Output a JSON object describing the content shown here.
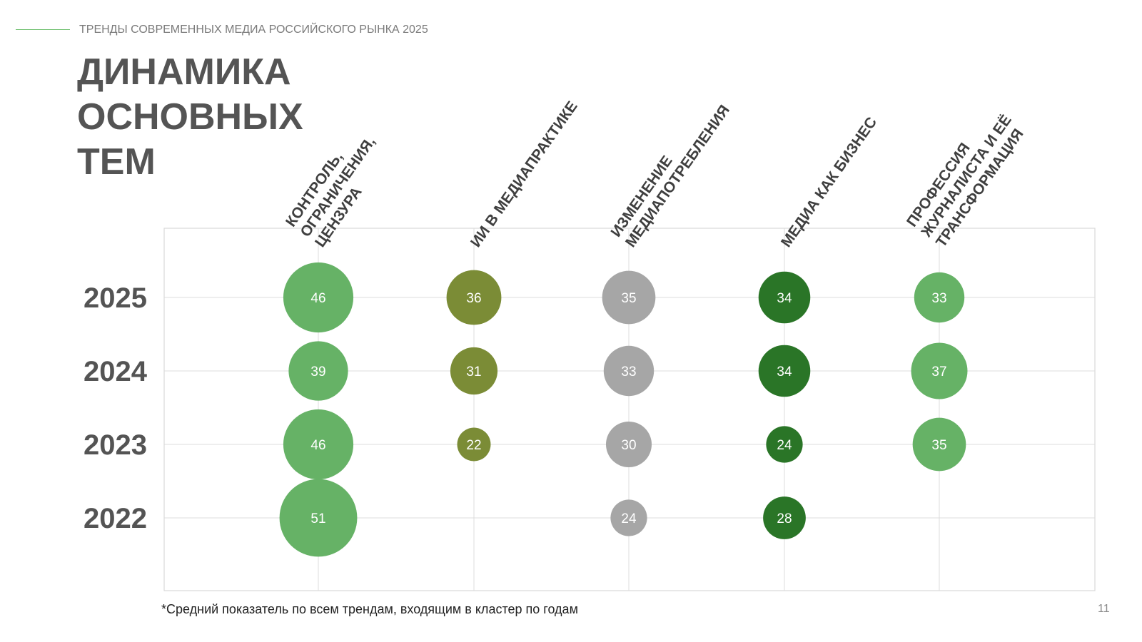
{
  "header": {
    "text": "ТРЕНДЫ СОВРЕМЕННЫХ МЕДИА РОССИЙСКОГО РЫНКА 2025"
  },
  "title": {
    "lines": [
      "ДИНАМИКА",
      "ОСНОВНЫХ",
      "ТЕМ"
    ]
  },
  "footnote": "*Средний показатель по всем трендам, входящим в кластер по годам",
  "page_number": "11",
  "chart_data": {
    "type": "bubble",
    "years": [
      "2025",
      "2024",
      "2023",
      "2022"
    ],
    "categories": [
      {
        "lines": [
          "КОНТРОЛЬ,",
          "ОГРАНИЧЕНИЯ,",
          "ЦЕНЗУРА"
        ],
        "color": "#66b266"
      },
      {
        "lines": [
          "ИИ В МЕДИАПРАКТИКЕ"
        ],
        "color": "#7b8c36"
      },
      {
        "lines": [
          "ИЗМЕНЕНИЕ",
          "МЕДИАПОТРЕБЛЕНИЯ"
        ],
        "color": "#a6a6a6"
      },
      {
        "lines": [
          "МЕДИА КАК БИЗНЕС"
        ],
        "color": "#2a7527"
      },
      {
        "lines": [
          "ПРОФЕССИЯ",
          "ЖУРНАЛИСТА И ЕЁ",
          "ТРАНСФОРМАЦИЯ"
        ],
        "color": "#66b266"
      }
    ],
    "values": [
      [
        46,
        39,
        46,
        51
      ],
      [
        36,
        31,
        22,
        null
      ],
      [
        35,
        33,
        30,
        24
      ],
      [
        34,
        34,
        24,
        28
      ],
      [
        33,
        37,
        35,
        null
      ]
    ],
    "grid": true
  }
}
